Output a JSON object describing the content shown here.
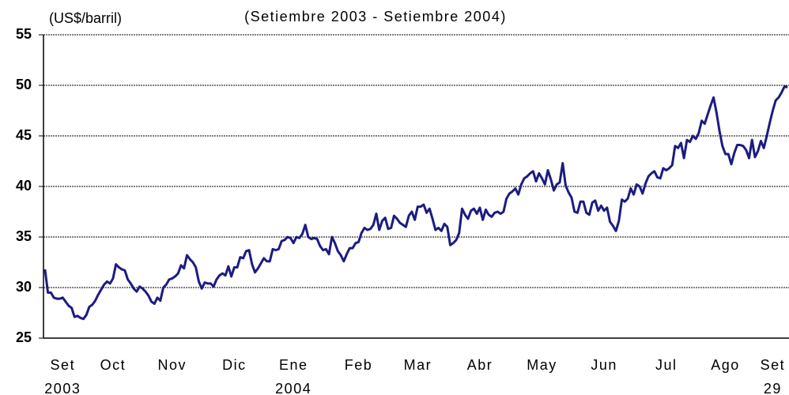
{
  "chart_data": {
    "type": "line",
    "title": "(Setiembre 2003 - Setiembre 2004)",
    "y_label": "(US$/barril)",
    "color": "#1c1c82",
    "grid": true,
    "ylim": [
      25,
      55
    ],
    "yticks": [
      25,
      30,
      35,
      40,
      45,
      50,
      55
    ],
    "xlim": [
      -0.5,
      251.5
    ],
    "xticks": [
      {
        "value": 6,
        "label": "Set"
      },
      {
        "value": 23,
        "label": "Oct"
      },
      {
        "value": 43,
        "label": "Nov"
      },
      {
        "value": 64,
        "label": "Dic"
      },
      {
        "value": 84,
        "label": "Ene"
      },
      {
        "value": 106,
        "label": "Feb"
      },
      {
        "value": 126,
        "label": "Mar"
      },
      {
        "value": 147,
        "label": "Abr"
      },
      {
        "value": 168,
        "label": "May"
      },
      {
        "value": 189,
        "label": "Jun"
      },
      {
        "value": 210,
        "label": "Jul"
      },
      {
        "value": 230,
        "label": "Ago"
      },
      {
        "value": 246,
        "label": "Set"
      }
    ],
    "xtick_sublabels": [
      {
        "value": 6,
        "label": "2003"
      },
      {
        "value": 84,
        "label": "2004"
      },
      {
        "value": 246,
        "label": "29"
      }
    ],
    "values": [
      31.8,
      29.5,
      29.5,
      29.0,
      28.9,
      28.9,
      29.0,
      28.6,
      28.2,
      28.0,
      27.1,
      27.2,
      27.0,
      26.9,
      27.3,
      28.1,
      28.3,
      28.7,
      29.3,
      29.8,
      30.3,
      30.6,
      30.4,
      30.9,
      32.3,
      32.0,
      31.8,
      31.7,
      30.8,
      30.4,
      29.9,
      29.6,
      30.1,
      29.9,
      29.6,
      29.2,
      28.6,
      28.4,
      29.0,
      28.7,
      30.0,
      30.3,
      30.8,
      30.9,
      31.1,
      31.4,
      32.2,
      31.9,
      33.2,
      32.8,
      32.5,
      32.0,
      30.6,
      29.9,
      30.5,
      30.4,
      30.4,
      30.1,
      30.8,
      31.2,
      31.4,
      31.2,
      32.1,
      31.1,
      32.0,
      32.0,
      33.0,
      32.9,
      33.6,
      33.7,
      32.3,
      31.5,
      31.9,
      32.4,
      32.9,
      32.6,
      32.6,
      33.8,
      33.7,
      33.8,
      34.6,
      34.7,
      35.0,
      34.9,
      34.4,
      35.0,
      34.9,
      35.3,
      36.2,
      35.0,
      34.8,
      34.9,
      34.8,
      34.1,
      33.7,
      33.8,
      33.3,
      35.0,
      34.4,
      33.6,
      33.2,
      32.6,
      33.3,
      33.9,
      33.9,
      34.4,
      34.5,
      35.4,
      35.9,
      35.7,
      35.8,
      36.2,
      37.3,
      35.7,
      36.6,
      36.9,
      35.8,
      35.9,
      37.1,
      36.8,
      36.4,
      36.2,
      36.0,
      37.1,
      37.5,
      36.7,
      38.0,
      38.0,
      38.2,
      37.4,
      37.8,
      36.8,
      35.7,
      35.9,
      35.6,
      36.3,
      36.0,
      34.2,
      34.4,
      34.7,
      35.4,
      37.8,
      37.2,
      36.8,
      37.6,
      37.8,
      37.3,
      37.9,
      36.7,
      37.7,
      37.2,
      37.0,
      37.4,
      37.5,
      37.3,
      37.5,
      38.8,
      39.3,
      39.5,
      39.8,
      39.2,
      40.2,
      40.8,
      41.0,
      41.3,
      41.5,
      40.5,
      41.3,
      40.8,
      40.2,
      41.6,
      40.7,
      39.6,
      40.2,
      40.4,
      42.3,
      40.1,
      39.4,
      38.9,
      37.5,
      37.4,
      38.5,
      38.5,
      37.4,
      37.2,
      38.4,
      38.6,
      37.6,
      38.1,
      37.6,
      37.9,
      36.5,
      36.1,
      35.6,
      36.6,
      38.7,
      38.5,
      38.8,
      39.8,
      39.2,
      40.2,
      40.0,
      39.3,
      40.3,
      41.0,
      41.3,
      41.5,
      40.9,
      40.8,
      41.8,
      41.6,
      41.8,
      42.1,
      44.0,
      43.8,
      44.3,
      42.8,
      44.6,
      44.4,
      45.0,
      44.7,
      45.3,
      46.5,
      46.2,
      47.1,
      48.0,
      48.8,
      47.3,
      45.5,
      44.0,
      43.2,
      43.2,
      42.2,
      43.3,
      44.1,
      44.1,
      44.0,
      43.6,
      42.8,
      44.6,
      42.9,
      43.5,
      44.5,
      43.8,
      45.0,
      46.3,
      47.5,
      48.5,
      48.8,
      49.3,
      49.9,
      49.8
    ]
  }
}
